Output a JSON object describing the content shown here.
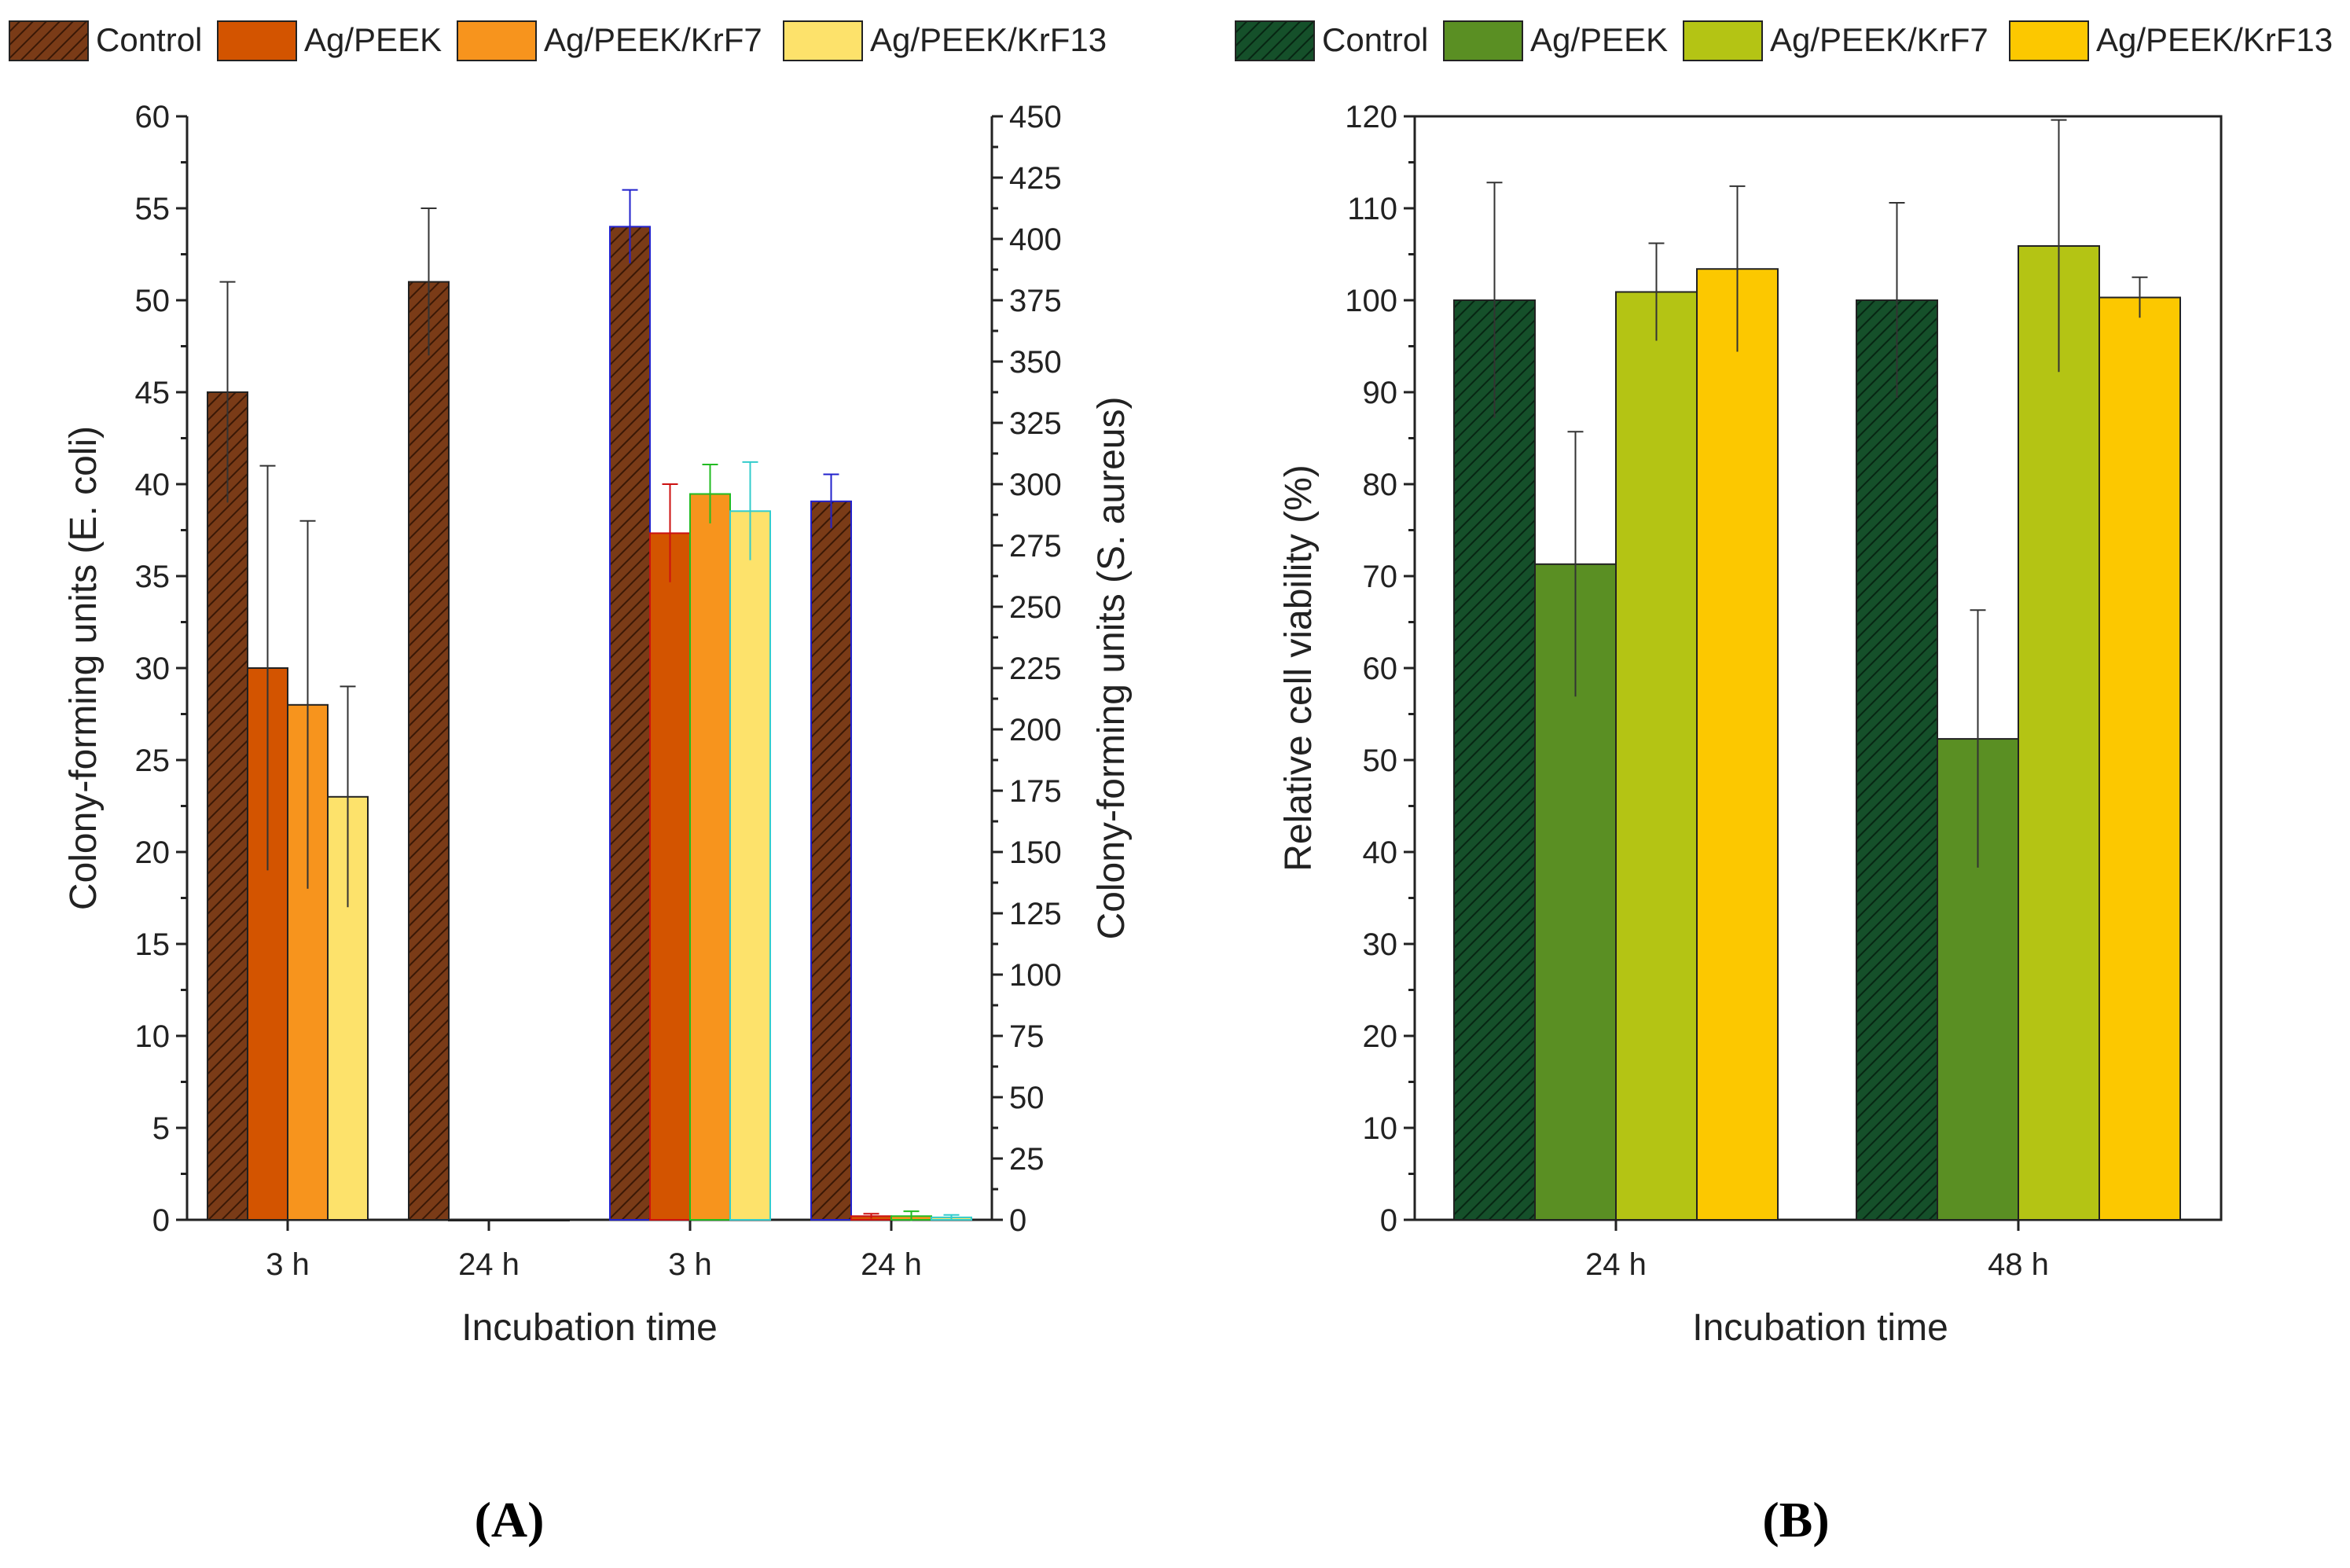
{
  "chart_data": [
    {
      "panel": "A",
      "type": "bar",
      "xlabel": "Incubation time",
      "ylabel": "Colony-forming units (E. coli)",
      "ylabel_right": "Colony-forming units (S. aureus)",
      "ylim": [
        0,
        60
      ],
      "yticks": [
        0,
        5,
        10,
        15,
        20,
        25,
        30,
        35,
        40,
        45,
        50,
        55,
        60
      ],
      "ylim_right": [
        0,
        450
      ],
      "yticks_right": [
        0,
        25,
        50,
        75,
        100,
        125,
        150,
        175,
        200,
        225,
        250,
        275,
        300,
        325,
        350,
        375,
        400,
        425,
        450
      ],
      "legend": [
        "Control",
        "Ag/PEEK",
        "Ag/PEEK/KrF7",
        "Ag/PEEK/KrF13"
      ],
      "legend_position": "top",
      "colors": [
        "#7a3b17",
        "#d35400",
        "#f7941d",
        "#fde26b"
      ],
      "groups": [
        {
          "label": "3 h",
          "organism": "E. coli",
          "axis": "left",
          "values": [
            45,
            30,
            28,
            23
          ],
          "errors": [
            6,
            11,
            10,
            6
          ]
        },
        {
          "label": "24 h",
          "organism": "E. coli",
          "axis": "left",
          "values": [
            51,
            0,
            0,
            0
          ],
          "errors": [
            4,
            0,
            0,
            0
          ]
        },
        {
          "label": "3 h",
          "organism": "S. aureus",
          "axis": "right",
          "values": [
            405,
            280,
            296,
            289
          ],
          "errors": [
            15,
            20,
            12,
            20
          ]
        },
        {
          "label": "24 h",
          "organism": "S. aureus",
          "axis": "right",
          "values": [
            293,
            1.5,
            1.5,
            1
          ],
          "errors": [
            11,
            1,
            2,
            1
          ]
        }
      ]
    },
    {
      "panel": "B",
      "type": "bar",
      "xlabel": "Incubation time",
      "ylabel": "Relative cell viability (%)",
      "ylim": [
        0,
        120
      ],
      "yticks": [
        0,
        10,
        20,
        30,
        40,
        50,
        60,
        70,
        80,
        90,
        100,
        110,
        120
      ],
      "legend": [
        "Control",
        "Ag/PEEK",
        "Ag/PEEK/KrF7",
        "Ag/PEEK/KrF13"
      ],
      "legend_position": "top",
      "colors": [
        "#15502a",
        "#5a8f23",
        "#b4c414",
        "#fcc800"
      ],
      "groups": [
        {
          "label": "24 h",
          "values": [
            100,
            71.3,
            100.9,
            103.4
          ],
          "errors": [
            12.8,
            14.4,
            5.3,
            9
          ]
        },
        {
          "label": "48 h",
          "values": [
            100,
            52.3,
            105.9,
            100.3
          ],
          "errors": [
            10.6,
            14,
            13.7,
            2.2
          ]
        }
      ]
    }
  ],
  "panel_labels": [
    "(A)",
    "(B)"
  ]
}
